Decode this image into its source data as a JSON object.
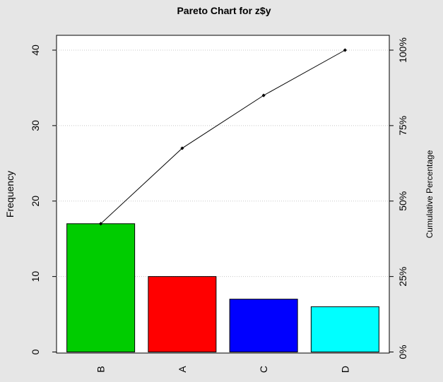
{
  "chart_data": {
    "type": "bar",
    "title": "Pareto Chart for z$y",
    "ylabel": "Frequency",
    "y2label": "Cumulative Percentage",
    "categories": [
      "B",
      "A",
      "C",
      "D"
    ],
    "values": [
      17,
      10,
      7,
      6
    ],
    "bar_colors": [
      "#00cc00",
      "#ff0000",
      "#0000ff",
      "#00ffff"
    ],
    "cumulative_percent": [
      42.5,
      67.5,
      85.0,
      100.0
    ],
    "ylim": [
      0,
      42
    ],
    "y_ticks": [
      0,
      10,
      20,
      30,
      40
    ],
    "y2_ticks": [
      {
        "value": 0,
        "label": "0%"
      },
      {
        "value": 25,
        "label": "25%"
      },
      {
        "value": 50,
        "label": "50%"
      },
      {
        "value": 75,
        "label": "75%"
      },
      {
        "value": 100,
        "label": "100%"
      }
    ],
    "grid": true,
    "line_color": "#000000"
  }
}
